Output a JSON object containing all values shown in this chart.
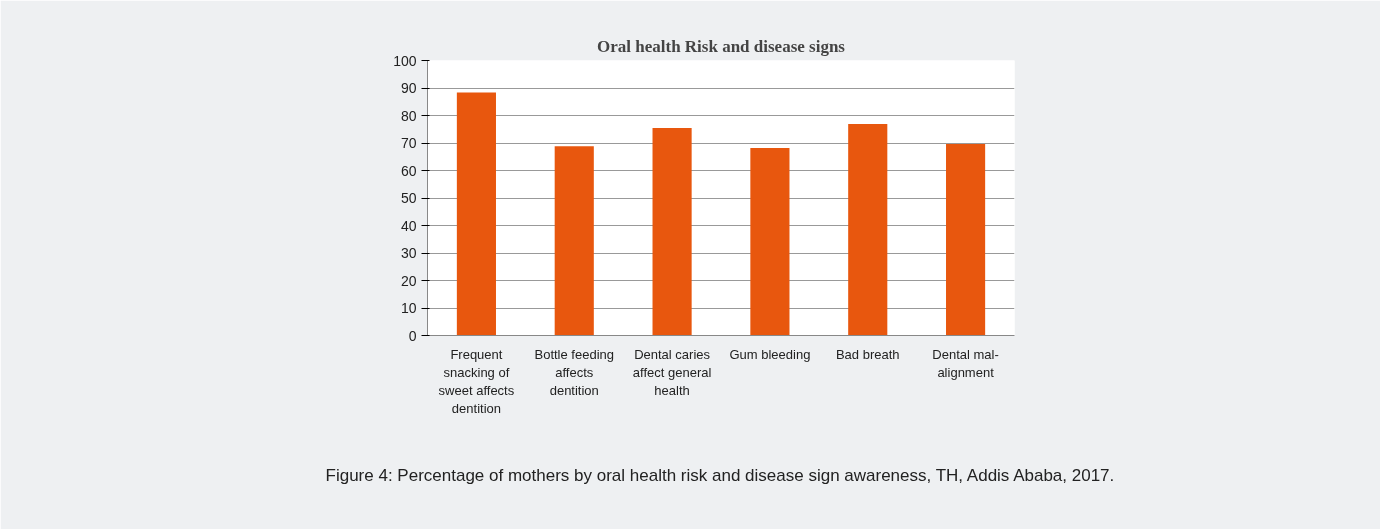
{
  "chart_data": {
    "type": "bar",
    "title": "Oral health Risk and disease signs",
    "categories": [
      "Frequent snacking of sweet affects dentition",
      "Bottle feeding affects dentition",
      "Dental caries affect general health",
      "Gum bleeding",
      "Bad breath",
      "Dental mal-alignment"
    ],
    "values": [
      88.4,
      68.8,
      75.5,
      68.2,
      76.9,
      69.6
    ],
    "color": "#e8570e",
    "ylim": [
      0,
      100
    ],
    "yticks": [
      0,
      10,
      20,
      30,
      40,
      50,
      60,
      70,
      80,
      90,
      100
    ],
    "grid": "y",
    "annotations": [
      "Figure 4: Percentage of mothers by oral health risk and disease sign awareness, TH, Addis Ababa, 2017."
    ]
  }
}
